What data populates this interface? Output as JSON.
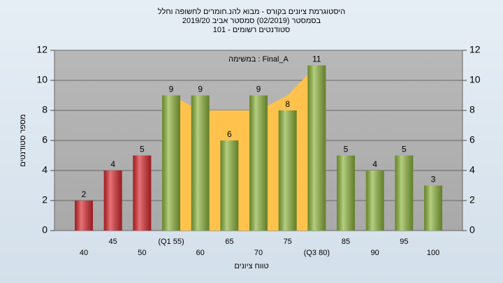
{
  "chart_data": {
    "type": "bar",
    "title": [
      "היסטוגרמת ציונים בקורס - מבוא להנ.חומרים לחשופה וחלל",
      "בסמסטר  (02/2019)  סמסטר אביב 2019/20",
      "סטודנטים רשומים - 101"
    ],
    "annotation": "במשימה : Final_A",
    "xlabel": "טווח ציונים",
    "ylabel": "מספר סטודנטים",
    "categories": [
      "40",
      "45",
      "50",
      "(Q1 55)",
      "60",
      "65",
      "70",
      "75",
      "(Q3 80)",
      "85",
      "90",
      "95",
      "100"
    ],
    "values": [
      2,
      4,
      5,
      9,
      9,
      6,
      9,
      8,
      11,
      5,
      4,
      5,
      3
    ],
    "colors": [
      "#d8282e",
      "#d8282e",
      "#d8282e",
      "#8db43c",
      "#8db43c",
      "#8db43c",
      "#8db43c",
      "#8db43c",
      "#8db43c",
      "#8db43c",
      "#8db43c",
      "#8db43c",
      "#8db43c"
    ],
    "area": {
      "color": "#ffc34d",
      "values": [
        null,
        null,
        null,
        9,
        8,
        8,
        8,
        9,
        11,
        null,
        null,
        null,
        null
      ]
    },
    "ylim": [
      0,
      12
    ],
    "yticks": [
      0,
      2,
      4,
      6,
      8,
      10,
      12
    ],
    "y2lim": [
      0,
      12
    ],
    "y2ticks": [
      0,
      2,
      4,
      6,
      8,
      10,
      12
    ],
    "grid": true
  }
}
